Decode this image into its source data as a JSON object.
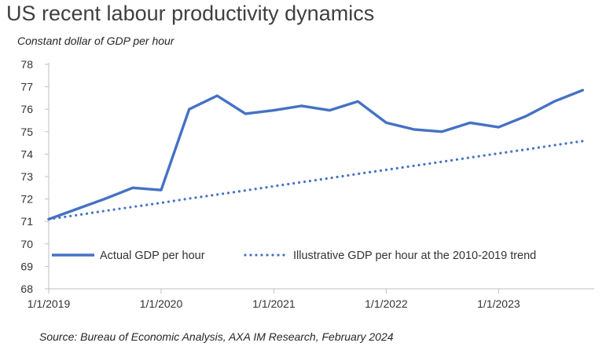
{
  "chart_data": {
    "type": "line",
    "title": "US recent labour productivity dynamics",
    "subtitle": "Constant dollar  of GDP per hour",
    "source": "Source: Bureau of Economic Analysis, AXA IM Research, February 2024",
    "ylim": [
      68,
      78
    ],
    "y_ticks": [
      "68",
      "69",
      "70",
      "71",
      "72",
      "73",
      "74",
      "75",
      "76",
      "77",
      "78"
    ],
    "x_ticks": [
      "1/1/2019",
      "1/1/2020",
      "1/1/2021",
      "1/1/2022",
      "1/1/2023"
    ],
    "x": [
      "2019-01-01",
      "2019-04-01",
      "2019-07-01",
      "2019-10-01",
      "2020-01-01",
      "2020-04-01",
      "2020-07-01",
      "2020-10-01",
      "2021-01-01",
      "2021-04-01",
      "2021-07-01",
      "2021-10-01",
      "2022-01-01",
      "2022-04-01",
      "2022-07-01",
      "2022-10-01",
      "2023-01-01",
      "2023-04-01",
      "2023-07-01",
      "2023-10-01"
    ],
    "series": [
      {
        "name": "Actual GDP per hour",
        "style": "solid",
        "color": "#4472C4",
        "values": [
          71.1,
          71.55,
          72.0,
          72.5,
          72.4,
          76.0,
          76.6,
          75.8,
          75.95,
          76.15,
          75.95,
          76.35,
          75.4,
          75.1,
          75.0,
          75.4,
          75.2,
          75.7,
          76.35,
          76.85
        ]
      },
      {
        "name": "Illustrative GDP per hour at the 2010-2019 trend",
        "style": "dotted",
        "color": "#4472C4",
        "values": [
          71.1,
          71.28,
          71.47,
          71.65,
          71.83,
          72.02,
          72.2,
          72.38,
          72.57,
          72.75,
          72.93,
          73.12,
          73.3,
          73.48,
          73.66,
          73.85,
          74.03,
          74.21,
          74.4,
          74.58
        ]
      }
    ],
    "grid": false,
    "legend": "bottom-inside"
  }
}
